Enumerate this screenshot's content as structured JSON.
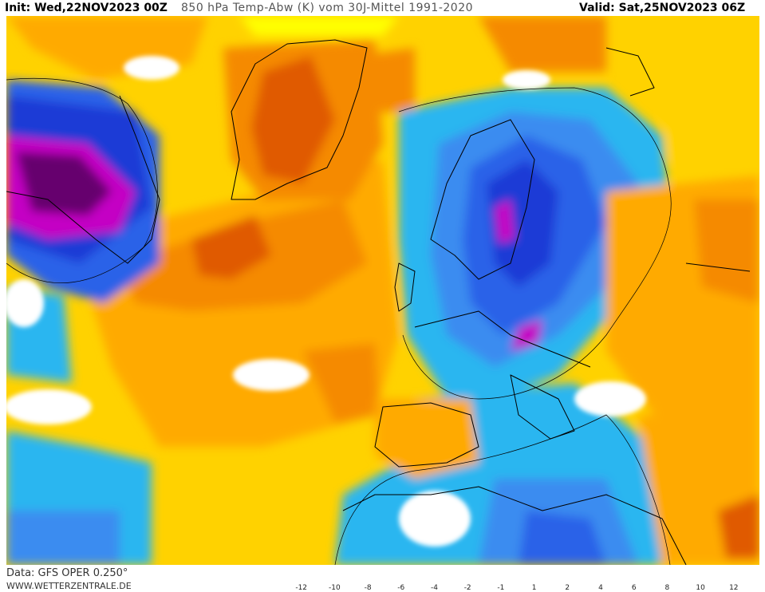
{
  "header": {
    "init": "Init: Wed,22NOV2023 00Z",
    "title": "850 hPa Temp-Abw (K) vom 30J-Mittel 1991-2020",
    "valid": "Valid: Sat,25NOV2023 06Z"
  },
  "footer": {
    "data_source": "Data: GFS OPER 0.250°",
    "website": "WWW.WETTERZENTRALE.DE"
  },
  "legend": {
    "ticks": [
      "-12",
      "-10",
      "-8",
      "-6",
      "-4",
      "-2",
      "-1",
      "1",
      "2",
      "4",
      "6",
      "8",
      "10",
      "12"
    ],
    "colors": [
      "#66006e",
      "#c400c4",
      "#1c3bd6",
      "#2a62e8",
      "#3a8cf0",
      "#29b6f0",
      "#15e0f0",
      "#ffffff",
      "#ffff00",
      "#ffd200",
      "#ffaa00",
      "#f58a00",
      "#e05a00",
      "#b41414",
      "#dc0078"
    ]
  }
}
